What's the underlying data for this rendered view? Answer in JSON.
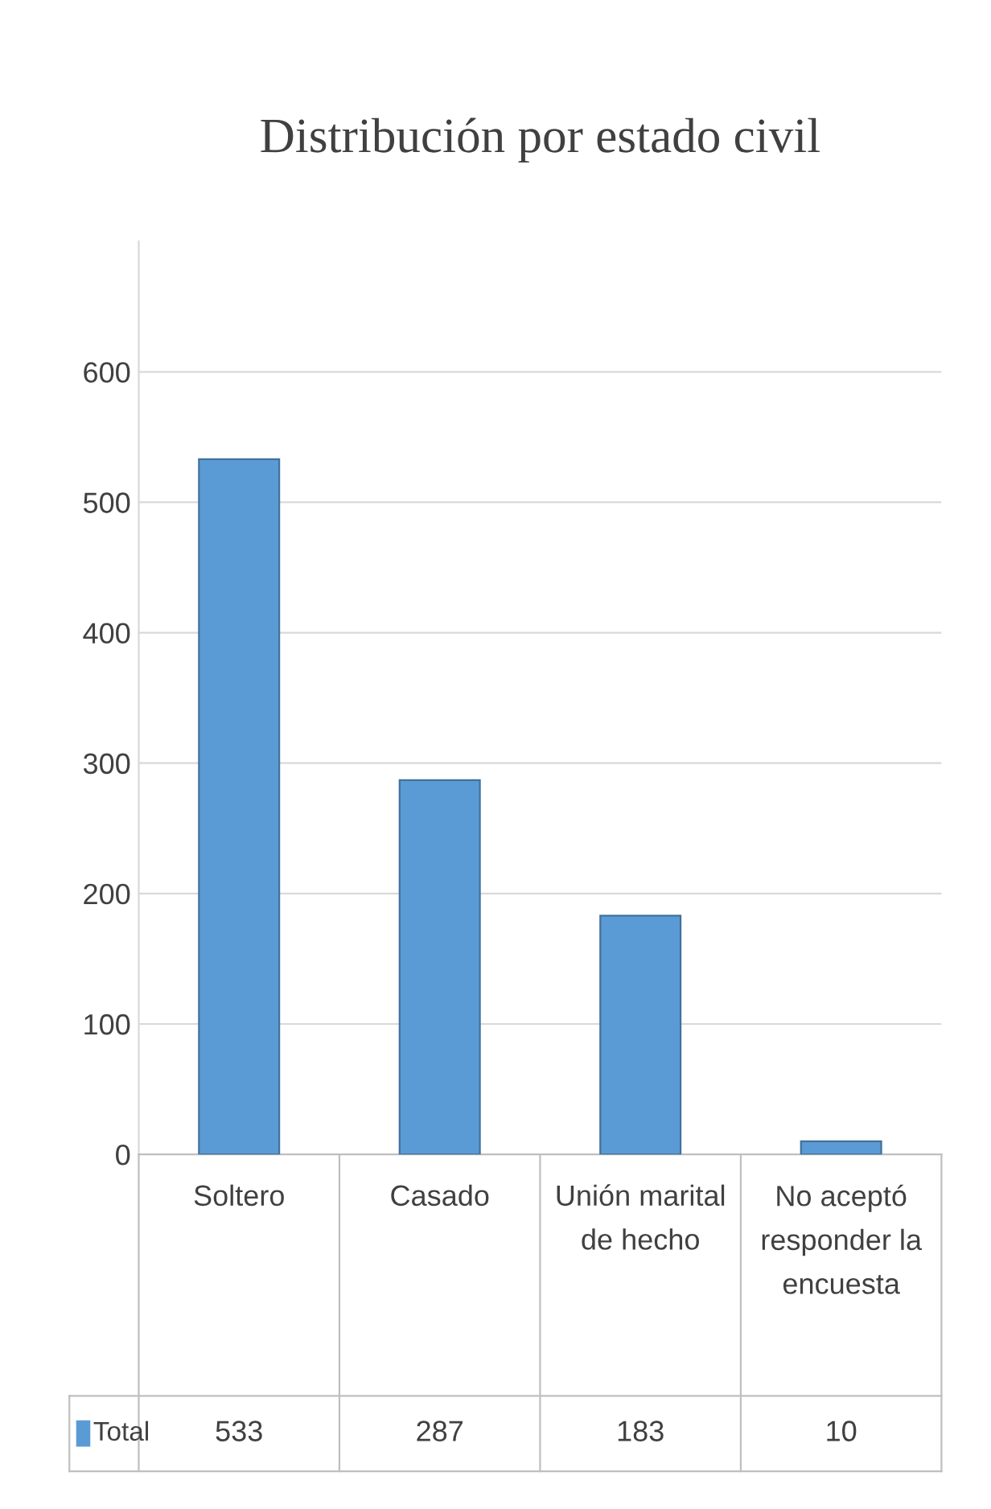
{
  "chart_data": {
    "type": "bar",
    "title": "Distribución por estado civil",
    "categories": [
      "Soltero",
      "Casado",
      "Unión marital de hecho",
      "No aceptó responder la encuesta"
    ],
    "series": [
      {
        "name": "Total",
        "color": "#5b9bd5",
        "values": [
          533,
          287,
          183,
          10
        ]
      }
    ],
    "ylim": [
      0,
      700
    ],
    "yticks": [
      0,
      100,
      200,
      300,
      400,
      500,
      600
    ],
    "grid": "y",
    "data_labels": true,
    "legend": "bottom"
  }
}
